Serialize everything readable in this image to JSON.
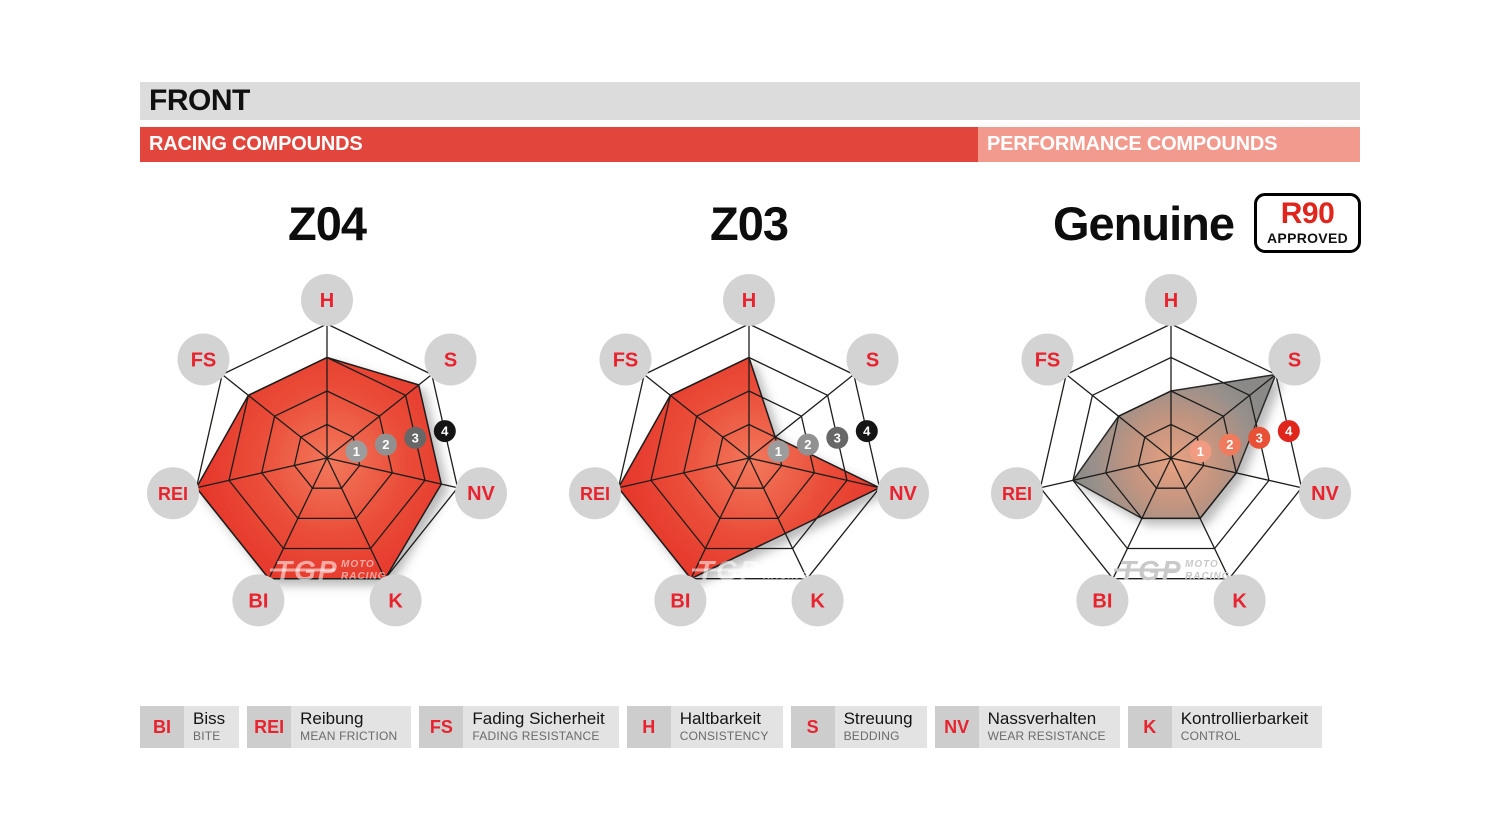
{
  "header": {
    "front_label": "FRONT",
    "racing_label": "RACING COMPOUNDS",
    "performance_label": "PERFORMANCE COMPOUNDS"
  },
  "badge": {
    "line1": "R90",
    "line2": "APPROVED"
  },
  "watermark": {
    "brand": "TGP",
    "moto": "MOTO",
    "racing": "RACING"
  },
  "colors": {
    "brand_red": "#e8232e",
    "banner_red": "#e2453c",
    "banner_salmon": "#f29a8e",
    "header_gray": "#dcdcdc",
    "axis_circle_gray": "#d3d3d3",
    "legend_box_gray": "#cdcdcd",
    "legend_strip_gray": "#e3e3e3",
    "grid_line": "#1d1d1b",
    "fill_red_center": "#f2785c",
    "fill_red_mid": "#ea4c38",
    "fill_red_edge": "#e5352a",
    "fill_gray_center": "#e7a182",
    "fill_gray_mid": "#c09480",
    "fill_gray_edge": "#8a8987",
    "scale_markers_gray": [
      "#9c9c9c",
      "#919191",
      "#676767",
      "#151515"
    ],
    "scale_markers_warm": [
      "#f19c82",
      "#ef7a5c",
      "#e85136",
      "#e0251c"
    ]
  },
  "chart_data": {
    "type": "radar",
    "axes_count": 7,
    "scale": {
      "min": 0,
      "max": 4,
      "rings": [
        1,
        2,
        3,
        4
      ]
    },
    "axes": [
      {
        "key": "H"
      },
      {
        "key": "S"
      },
      {
        "key": "NV"
      },
      {
        "key": "K"
      },
      {
        "key": "BI"
      },
      {
        "key": "REI"
      },
      {
        "key": "FS"
      }
    ],
    "series": [
      {
        "name": "Z04",
        "group": "racing",
        "style": "red",
        "values": {
          "H": 3,
          "S": 3.5,
          "NV": 3.5,
          "K": 4,
          "BI": 4,
          "REI": 4,
          "FS": 3
        }
      },
      {
        "name": "Z03",
        "group": "racing",
        "style": "red",
        "values": {
          "H": 3,
          "S": 1,
          "NV": 4,
          "K": 2.5,
          "BI": 4,
          "REI": 4,
          "FS": 3
        }
      },
      {
        "name": "Genuine",
        "group": "performance",
        "style": "gray",
        "badge": true,
        "values": {
          "H": 2,
          "S": 4,
          "NV": 2,
          "K": 2,
          "BI": 2,
          "REI": 3,
          "FS": 2
        }
      }
    ]
  },
  "legend": {
    "items": [
      {
        "abbr": "BI",
        "de": "Biss",
        "en": "BITE"
      },
      {
        "abbr": "REI",
        "de": "Reibung",
        "en": "MEAN FRICTION"
      },
      {
        "abbr": "FS",
        "de": "Fading Sicherheit",
        "en": "FADING RESISTANCE"
      },
      {
        "abbr": "H",
        "de": "Haltbarkeit",
        "en": "CONSISTENCY"
      },
      {
        "abbr": "S",
        "de": "Streuung",
        "en": "BEDDING"
      },
      {
        "abbr": "NV",
        "de": "Nassverhalten",
        "en": "WEAR RESISTANCE"
      },
      {
        "abbr": "K",
        "de": "Kontrollierbarkeit",
        "en": "CONTROL"
      }
    ]
  }
}
